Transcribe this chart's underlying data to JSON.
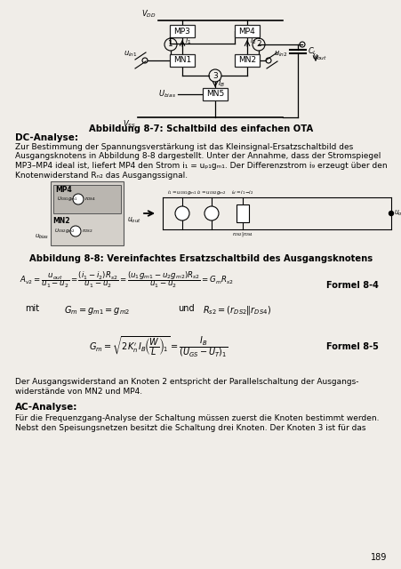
{
  "bg_color": "#f0ede8",
  "page_number": "189",
  "fig87_caption": "Abbildung 8-7: Schaltbild des einfachen OTA",
  "fig88_caption": "Abbildung 8-8: Vereinfachtes Ersatzschaltbild des Ausgangsknotens",
  "dc_title": "DC-Analyse:",
  "dc_line1": "Zur Bestimmung der Spannungsverstärkung ist das Kleinsignal-Ersatzschaltbild des",
  "dc_line2": "Ausgangsknotens in Abbildung 8-8 dargestellt. Unter der Annahme, dass der Stromspiegel",
  "dc_line3": "MP3–MP4 ideal ist, liefert MP4 den Strom i₁ = uₚ₁gₘ₁. Der Differenzstrom i₉ erzeugt über den",
  "dc_line4": "Knotenwiderstand Rₙ₂ das Ausgangssignal.",
  "formel84": "Formel 8-4",
  "formel85": "Formel 8-5",
  "bot_line1": "Der Ausgangswiderstand an Knoten 2 entspricht der Parallelschaltung der Ausgangs-",
  "bot_line2": "widerstände von MN2 und MP4.",
  "ac_title": "AC-Analyse:",
  "ac_line1": "Für die Frequenzgang-Analyse der Schaltung müssen zuerst die Knoten bestimmt werden.",
  "ac_line2": "Nebst den Speisungsnetzen besitzt die Schaltung drei Knoten. Der Knoten 3 ist für das"
}
